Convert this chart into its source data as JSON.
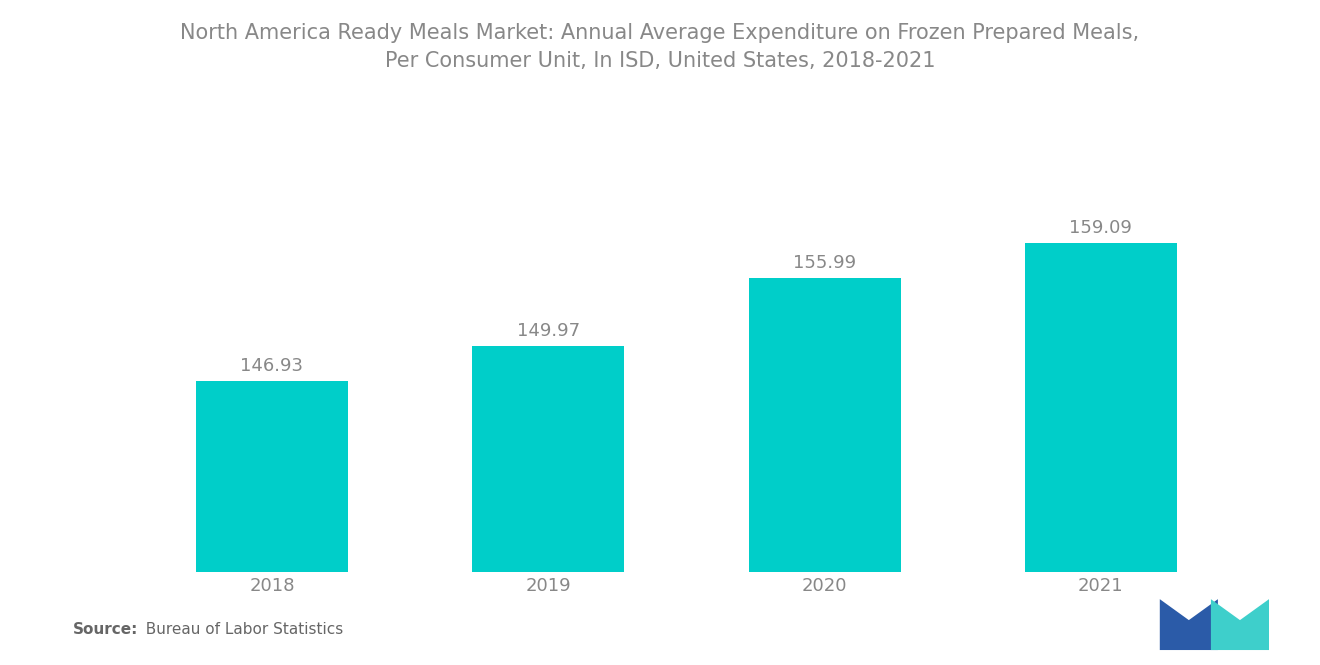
{
  "title_line1": "North America Ready Meals Market: Annual Average Expenditure on Frozen Prepared Meals,",
  "title_line2": "Per Consumer Unit, In ISD, United States, 2018-2021",
  "categories": [
    "2018",
    "2019",
    "2020",
    "2021"
  ],
  "values": [
    146.93,
    149.97,
    155.99,
    159.09
  ],
  "bar_color": "#00CEC9",
  "background_color": "#ffffff",
  "title_fontsize": 15,
  "label_fontsize": 13,
  "tick_fontsize": 13,
  "source_bold": "Source:",
  "source_normal": "  Bureau of Labor Statistics",
  "ylim_min": 130,
  "ylim_max": 170,
  "bar_width": 0.55,
  "label_color": "#888888",
  "tick_color": "#888888",
  "title_color": "#888888",
  "logo_blue": "#2B5BA8",
  "logo_teal": "#3ECFCB"
}
